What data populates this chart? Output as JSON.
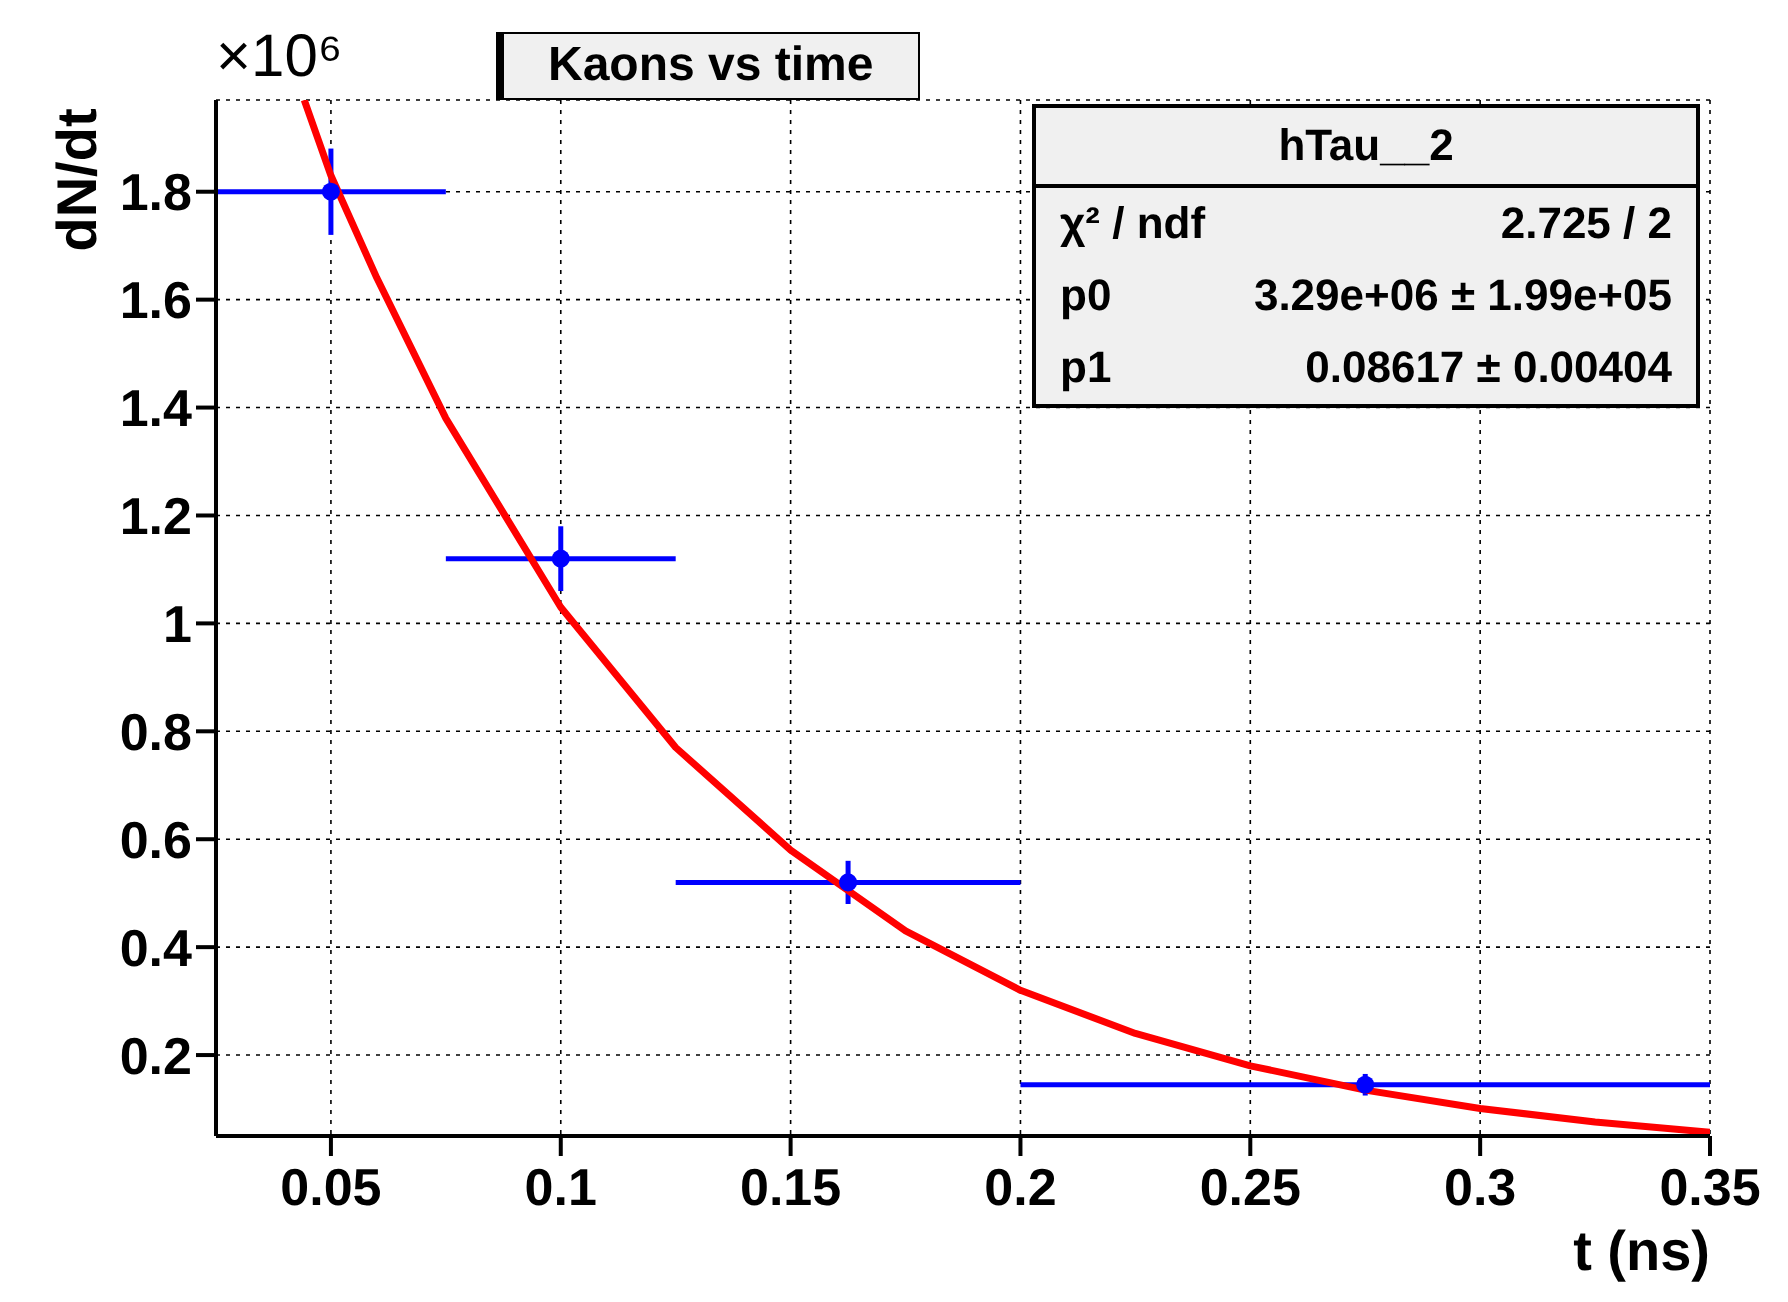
{
  "chart_data": {
    "type": "scatter",
    "title": "Kaons vs time",
    "xlabel": "t (ns)",
    "ylabel": "dN/dt",
    "annotations": [
      "×10⁶",
      "hTau__2",
      "χ² / ndf",
      "2.725 / 2",
      "p0",
      "3.29e+06 ± 1.99e+05",
      "p1",
      "0.08617 ± 0.00404"
    ],
    "xlim": [
      0.025,
      0.35
    ],
    "xticks": [
      0.05,
      0.1,
      0.15,
      0.2,
      0.25,
      0.3,
      0.35
    ],
    "ylim": [
      0.05,
      1.97
    ],
    "yticks": [
      0.2,
      0.4,
      0.6,
      0.8,
      1,
      1.2,
      1.4,
      1.6,
      1.8
    ],
    "grid": true,
    "legend": false,
    "x": [
      0.05,
      0.1,
      0.1625,
      0.275
    ],
    "series": [
      {
        "color": "#0000ff",
        "marker": "circle",
        "values": [
          1.8,
          1.12,
          0.52,
          0.145
        ],
        "errors": [
          0.08,
          0.06,
          0.04,
          0.02
        ],
        "xerrors": [
          [
            0.025,
            0.075
          ],
          [
            0.075,
            0.125
          ],
          [
            0.125,
            0.2
          ],
          [
            0.2,
            0.35
          ]
        ]
      },
      {
        "type": "line",
        "color": "#ff0000",
        "marker": "none",
        "line_style": "solid",
        "x": [
          0.0442,
          0.05,
          0.06,
          0.075,
          0.1,
          0.125,
          0.15,
          0.175,
          0.2,
          0.225,
          0.25,
          0.275,
          0.3,
          0.325,
          0.35
        ],
        "values": [
          1.97,
          1.83,
          1.64,
          1.38,
          1.03,
          0.77,
          0.58,
          0.43,
          0.32,
          0.24,
          0.18,
          0.135,
          0.101,
          0.076,
          0.057
        ]
      }
    ]
  }
}
